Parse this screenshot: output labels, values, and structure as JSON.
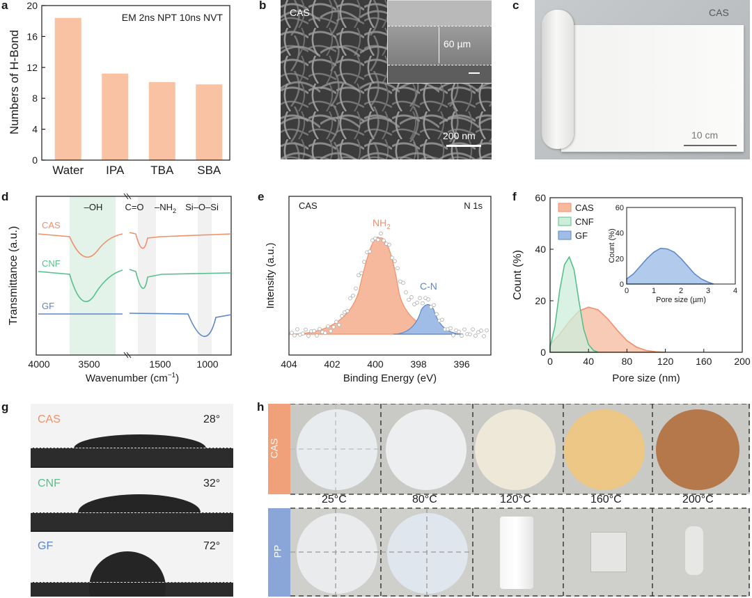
{
  "figure": {
    "colors": {
      "cas": "#f0906a",
      "cas_fill": "#f6b99d",
      "cnf": "#57c08a",
      "cnf_fill": "#cdeedb",
      "gf": "#5b86c9",
      "gf_fill": "#9fbde6",
      "bar": "#f9c2a3",
      "pp_side": "#8aa6d8",
      "cas_side": "#f0a17a"
    }
  },
  "panel_a": {
    "label": "a",
    "title": "EM 2ns NPT 10ns NVT",
    "ylabel": "Numbers of H-Bond",
    "yticks": [
      "0",
      "4",
      "8",
      "12",
      "16",
      "20"
    ]
  },
  "panel_b": {
    "label": "b",
    "sample": "CAS",
    "thickness": "60 µm",
    "scalebar": "200 nm"
  },
  "panel_c": {
    "label": "c",
    "sample": "CAS",
    "scalebar": "10 cm"
  },
  "panel_d": {
    "label": "d",
    "ylabel": "Transmittance (a.u.)",
    "xlabel_prefix": "Wavenumber (cm",
    "xlabel_sup": "−1",
    "xlabel_suffix": ")",
    "xticks": [
      "4000",
      "3500",
      "1500",
      "1000"
    ],
    "band_oh": "–OH",
    "band_co": "C=O",
    "band_nh": "–NH",
    "band_nh_sub": "2",
    "band_sio": "Si–O–Si",
    "series": [
      "CAS",
      "CNF",
      "GF"
    ]
  },
  "panel_e": {
    "label": "e",
    "sample": "CAS",
    "region": "N 1s",
    "peak_nh": "NH",
    "peak_nh_sub": "2",
    "peak_cn": "C-N",
    "ylabel": "Intensity (a.u.)",
    "xlabel": "Binding Energy (eV)",
    "xticks": [
      "404",
      "402",
      "400",
      "398",
      "396"
    ]
  },
  "panel_f": {
    "label": "f",
    "ylabel": "Count (%)",
    "xlabel": "Pore size (nm)",
    "xticks": [
      "0",
      "40",
      "80",
      "120",
      "160",
      "200"
    ],
    "yticks": [
      "0",
      "20",
      "40",
      "60"
    ],
    "legend": [
      "CAS",
      "CNF",
      "GF"
    ],
    "inset": {
      "ylabel": "Count (%)",
      "xlabel": "Pore size (µm)",
      "xticks": [
        "0",
        "1",
        "2",
        "3",
        "4"
      ],
      "yticks": [
        "0",
        "20",
        "40",
        "60"
      ]
    }
  },
  "panel_g": {
    "label": "g",
    "rows": [
      {
        "name": "CAS",
        "angle": "28°"
      },
      {
        "name": "CNF",
        "angle": "32°"
      },
      {
        "name": "GF",
        "angle": "72°"
      }
    ]
  },
  "panel_h": {
    "label": "h",
    "row_labels": [
      "CAS",
      "PP"
    ],
    "temperatures": [
      "25°C",
      "80°C",
      "120°C",
      "160°C",
      "200°C"
    ]
  },
  "chart_data": [
    {
      "type": "bar",
      "panel": "a",
      "title": "EM 2ns NPT 10ns NVT",
      "categories": [
        "Water",
        "IPA",
        "TBA",
        "SBA"
      ],
      "values": [
        18.4,
        11.2,
        10.1,
        9.8
      ],
      "xlabel": "",
      "ylabel": "Numbers of H-Bond",
      "ylim": [
        0,
        20
      ]
    },
    {
      "type": "line",
      "panel": "f",
      "xlabel": "Pore size (nm)",
      "ylabel": "Count (%)",
      "xlim": [
        0,
        200
      ],
      "ylim": [
        0,
        60
      ],
      "series": [
        {
          "name": "CAS",
          "x": [
            0,
            10,
            20,
            30,
            40,
            50,
            60,
            70,
            80,
            90,
            100,
            110,
            120
          ],
          "values": [
            3,
            7,
            12,
            16,
            17.5,
            16.5,
            13,
            8.5,
            4.5,
            2,
            0.7,
            0.2,
            0
          ]
        },
        {
          "name": "CNF",
          "x": [
            0,
            5,
            10,
            15,
            20,
            25,
            30,
            35,
            40,
            45,
            50
          ],
          "values": [
            2,
            10,
            24,
            34,
            37,
            32,
            20,
            9,
            3,
            0.8,
            0
          ]
        }
      ]
    },
    {
      "type": "line",
      "panel": "f-inset",
      "xlabel": "Pore size (µm)",
      "ylabel": "Count (%)",
      "xlim": [
        0,
        4
      ],
      "ylim": [
        0,
        60
      ],
      "series": [
        {
          "name": "GF",
          "x": [
            0,
            0.25,
            0.5,
            0.75,
            1.0,
            1.25,
            1.5,
            1.75,
            2.0,
            2.25,
            2.5,
            2.75,
            3.0,
            3.2
          ],
          "values": [
            4,
            8,
            14,
            20,
            25,
            28,
            27.5,
            25,
            20,
            14,
            8,
            4,
            1.5,
            0
          ]
        }
      ]
    }
  ]
}
